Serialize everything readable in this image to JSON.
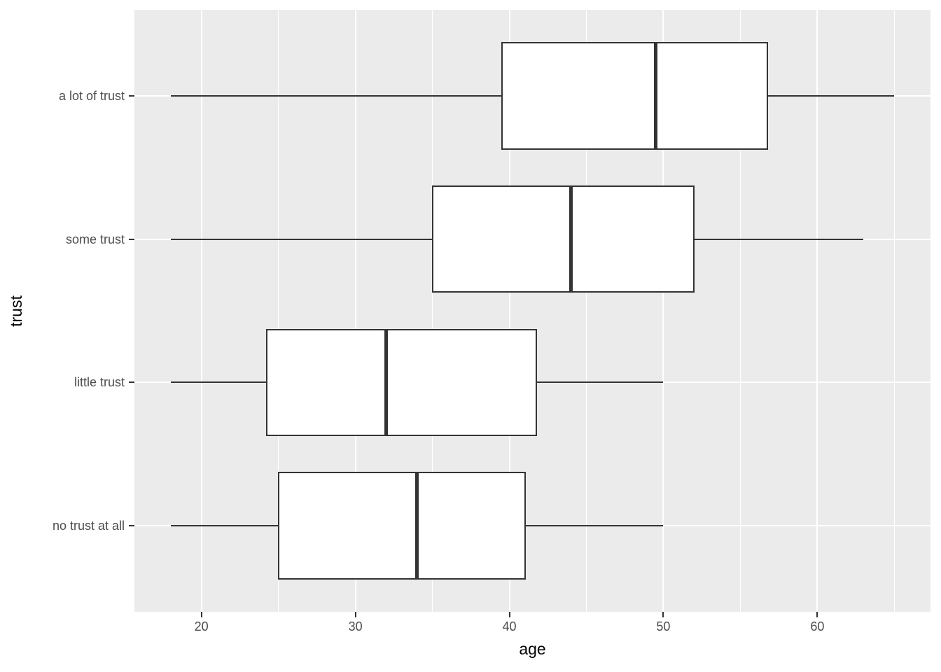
{
  "chart_data": {
    "type": "boxplot",
    "orientation": "horizontal",
    "title": "",
    "xlabel": "age",
    "ylabel": "trust",
    "xlim": [
      15.65,
      67.35
    ],
    "x_major_ticks": [
      20,
      30,
      40,
      50,
      60
    ],
    "x_minor_gridlines": [
      25,
      35,
      45,
      55,
      65
    ],
    "grid": true,
    "legend": false,
    "categories": [
      "a lot of trust",
      "some trust",
      "little trust",
      "no trust at all"
    ],
    "series": [
      {
        "category": "a lot of trust",
        "min": 18,
        "q1": 39.5,
        "median": 49.5,
        "q3": 56.75,
        "max": 65
      },
      {
        "category": "some trust",
        "min": 18,
        "q1": 35,
        "median": 44,
        "q3": 52,
        "max": 63
      },
      {
        "category": "little trust",
        "min": 18,
        "q1": 24.25,
        "median": 32,
        "q3": 41.75,
        "max": 50
      },
      {
        "category": "no trust at all",
        "min": 18,
        "q1": 25,
        "median": 34,
        "q3": 41,
        "max": 50
      }
    ],
    "box_width_fraction": 0.75,
    "colors": {
      "panel_background": "#EBEBEB",
      "gridline": "#FFFFFF",
      "box_fill": "#FFFFFF",
      "box_border": "#333333",
      "tick_label": "#4D4D4D",
      "axis_title": "#000000"
    }
  }
}
